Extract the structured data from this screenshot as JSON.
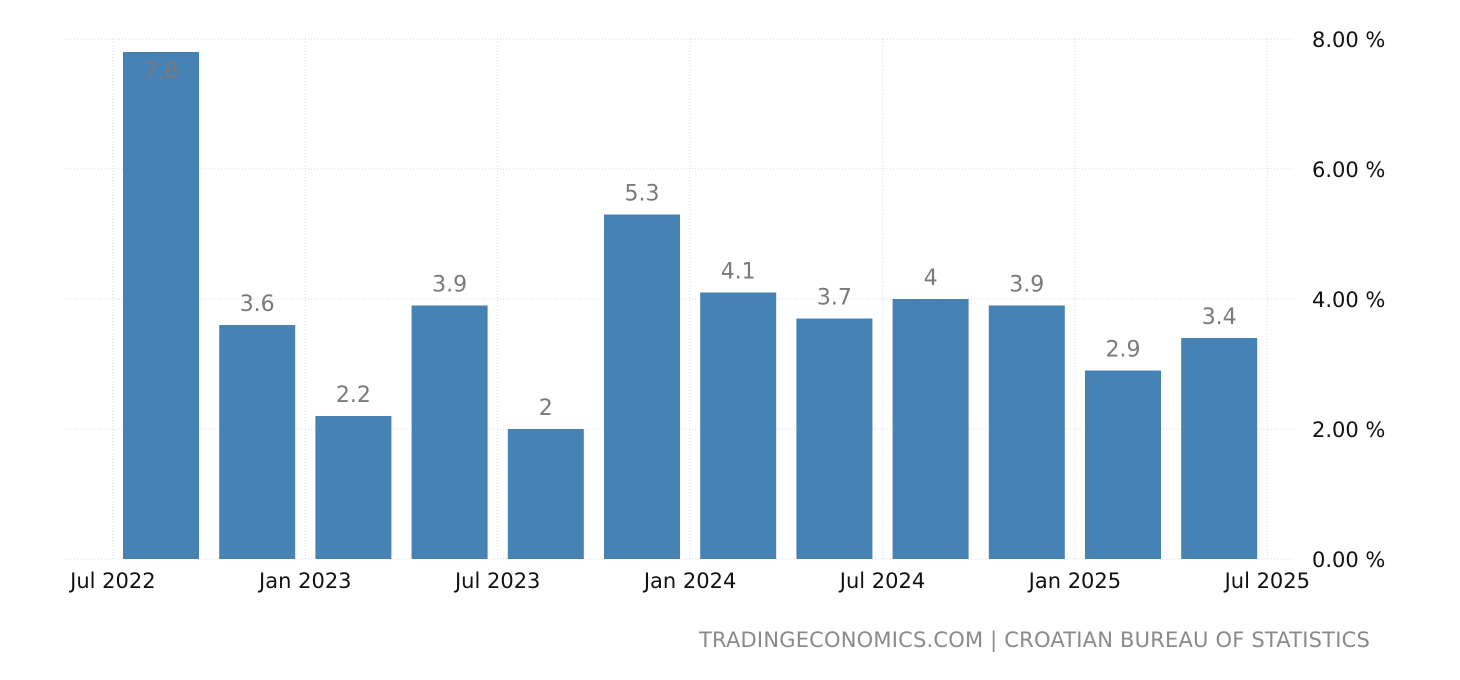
{
  "chart_data": {
    "type": "bar",
    "categories": [
      "Q3 2022",
      "Q4 2022",
      "Q1 2023",
      "Q2 2023",
      "Q3 2023",
      "Q4 2023",
      "Q1 2024",
      "Q2 2024",
      "Q3 2024",
      "Q4 2024",
      "Q1 2025",
      "Q2 2025"
    ],
    "values": [
      7.8,
      3.6,
      2.2,
      3.9,
      2.0,
      5.3,
      4.1,
      3.7,
      4.0,
      3.9,
      2.9,
      3.4
    ],
    "data_labels": [
      "7.8",
      "3.6",
      "2.2",
      "3.9",
      "2",
      "5.3",
      "4.1",
      "3.7",
      "4",
      "3.9",
      "2.9",
      "3.4"
    ],
    "ylim": [
      0,
      8
    ],
    "y_ticks": [
      0,
      2,
      4,
      6,
      8
    ],
    "y_tick_labels": [
      "0.00 %",
      "2.00 %",
      "4.00 %",
      "6.00 %",
      "8.00 %"
    ],
    "x_tick_labels": [
      "Jul 2022",
      "Jan 2023",
      "Jul 2023",
      "Jan 2024",
      "Jul 2024",
      "Jan 2025",
      "Jul 2025"
    ],
    "x_tick_positions": [
      -0.5,
      1.5,
      3.5,
      5.5,
      7.5,
      9.5,
      11.5
    ],
    "y_axis_side": "right",
    "grid": true,
    "bar_color": "#4682b4"
  },
  "footer": {
    "source": "TRADINGECONOMICS.COM | CROATIAN BUREAU OF STATISTICS"
  }
}
